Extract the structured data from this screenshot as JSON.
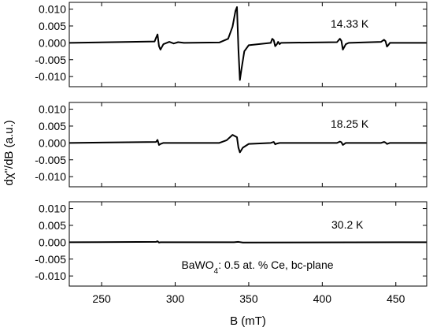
{
  "chart_data": {
    "type": "line",
    "shared_x": {
      "label": "B (mT)",
      "lim": [
        228,
        471
      ],
      "ticks": [
        250,
        300,
        350,
        400,
        450
      ]
    },
    "shared_y_label": {
      "base": "dχ",
      "rest": "\"/dB (a.u.)"
    },
    "annotation": {
      "main": "BaWO",
      "sub": "4",
      "rest": ": 0.5 at. % Ce, bc-plane"
    },
    "panels": [
      {
        "label": "14.33 K",
        "ylim": [
          -0.013,
          0.012
        ],
        "yticks": [
          0.01,
          0.005,
          0.0,
          -0.005,
          -0.01
        ],
        "ytick_labels": [
          "0.010",
          "0.005",
          "0.000",
          "-0.005",
          "-0.010"
        ],
        "x": [
          228,
          286,
          287,
          288,
          289,
          290,
          292,
          296,
          299,
          302,
          306,
          330,
          336,
          339,
          341,
          342,
          343,
          344,
          345,
          347,
          350,
          365,
          366,
          367,
          368,
          369,
          370,
          371,
          372,
          410,
          412,
          413,
          414,
          415,
          416,
          418,
          440,
          442,
          443,
          444,
          445,
          446,
          471
        ],
        "y": [
          0.0,
          0.0004,
          0.0015,
          0.0025,
          -0.001,
          -0.002,
          -0.0004,
          0.0003,
          -0.0002,
          0.0002,
          0.0,
          0.0001,
          0.0012,
          0.0048,
          0.0095,
          0.0106,
          -0.002,
          -0.011,
          -0.008,
          -0.0025,
          -0.0007,
          0.0,
          0.0012,
          0.0008,
          -0.001,
          -0.0005,
          0.0003,
          -0.0004,
          0.0,
          0.0002,
          0.0012,
          0.0006,
          -0.002,
          -0.0012,
          -0.0004,
          0.0,
          0.0003,
          0.0009,
          0.0005,
          -0.0011,
          -0.0006,
          0.0,
          0.0
        ]
      },
      {
        "label": "18.25 K",
        "ylim": [
          -0.013,
          0.012
        ],
        "yticks": [
          0.01,
          0.005,
          0.0,
          -0.005,
          -0.01
        ],
        "ytick_labels": [
          "0.010",
          "0.005",
          "0.000",
          "-0.005",
          "-0.010"
        ],
        "x": [
          228,
          287,
          288,
          289,
          290,
          292,
          330,
          335,
          339,
          342,
          343,
          344,
          346,
          350,
          365,
          367,
          368,
          369,
          371,
          410,
          412,
          413,
          414,
          416,
          440,
          442,
          443,
          444,
          446,
          471
        ],
        "y": [
          0.0,
          0.0003,
          0.0009,
          -0.0006,
          -0.0003,
          0.0,
          0.0,
          0.0008,
          0.0024,
          0.0017,
          -0.0014,
          -0.0028,
          -0.0014,
          -0.0003,
          0.0,
          0.0003,
          -0.0004,
          -0.0002,
          0.0,
          0.0,
          0.0004,
          0.0002,
          -0.0006,
          0.0,
          0.0,
          0.0003,
          0.0001,
          -0.0003,
          0.0,
          0.0
        ]
      },
      {
        "label": "30.2 K",
        "ylim": [
          -0.013,
          0.012
        ],
        "yticks": [
          0.01,
          0.005,
          0.0,
          -0.005,
          -0.01
        ],
        "ytick_labels": [
          "0.010",
          "0.005",
          "0.000",
          "-0.005",
          "-0.010"
        ],
        "x": [
          228,
          287,
          288,
          289,
          290,
          340,
          343,
          346,
          471
        ],
        "y": [
          0.0,
          0.0001,
          0.0003,
          -0.0001,
          0.0,
          0.0,
          0.0001,
          -0.0001,
          0.0
        ]
      }
    ]
  }
}
